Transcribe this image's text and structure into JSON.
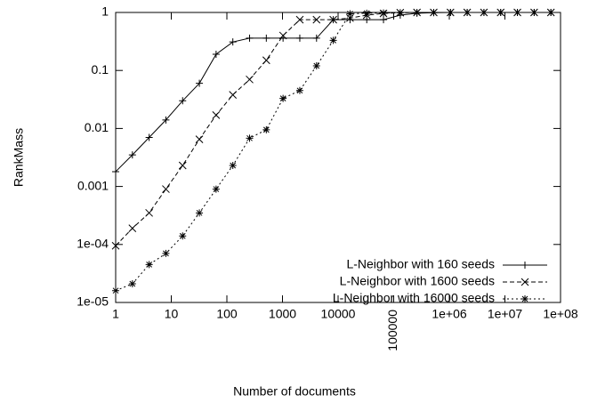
{
  "chart_data": {
    "type": "line",
    "xlabel": "Number of documents",
    "ylabel": "RankMass",
    "xscale": "log",
    "yscale": "log",
    "xlim": [
      1,
      100000000
    ],
    "ylim": [
      1e-05,
      1
    ],
    "xticks": [
      1,
      10,
      100,
      1000,
      10000,
      100000,
      {
        "value": 1000000,
        "label": "1e+06"
      },
      {
        "value": 10000000,
        "label": "1e+07"
      },
      {
        "value": 100000000,
        "label": "1e+08"
      }
    ],
    "yticks": [
      {
        "value": 1e-05,
        "label": "1e-05"
      },
      {
        "value": 0.0001,
        "label": "1e-04"
      },
      0.001,
      0.01,
      0.1,
      1
    ],
    "legend": "bottom-right",
    "x": [
      1,
      2,
      4,
      8,
      16,
      32,
      64,
      128,
      256,
      512,
      1024,
      2048,
      4096,
      8192,
      16384,
      32768,
      65536,
      131072,
      262144,
      524288,
      1048576,
      2097152,
      4194304,
      8388608,
      16777216,
      33554432,
      67108864
    ],
    "series": [
      {
        "name": "L-Neighbor with 160 seeds",
        "color": "#000000",
        "dash": "solid",
        "marker": "plus",
        "values": [
          0.0018,
          0.0035,
          0.007,
          0.014,
          0.03,
          0.06,
          0.19,
          0.31,
          0.36,
          0.36,
          0.36,
          0.36,
          0.36,
          0.75,
          0.75,
          0.75,
          0.75,
          0.9,
          0.97,
          0.99,
          1,
          1,
          1,
          1,
          1,
          1,
          1
        ]
      },
      {
        "name": "L-Neighbor with 1600 seeds",
        "color": "#000000",
        "dash": "dashed",
        "marker": "cross",
        "values": [
          9.5e-05,
          0.00019,
          0.00035,
          0.0009,
          0.0023,
          0.0065,
          0.017,
          0.038,
          0.07,
          0.15,
          0.4,
          0.75,
          0.75,
          0.75,
          0.8,
          0.9,
          0.96,
          0.99,
          1,
          1,
          1,
          1,
          1,
          1,
          1,
          1,
          1
        ]
      },
      {
        "name": "L-Neighbor with 16000 seeds",
        "color": "#000000",
        "dash": "dotted",
        "marker": "star",
        "values": [
          1.6e-05,
          2.1e-05,
          4.5e-05,
          7e-05,
          0.00014,
          0.00035,
          0.0009,
          0.0023,
          0.0068,
          0.0095,
          0.033,
          0.045,
          0.12,
          0.33,
          0.95,
          0.97,
          0.98,
          0.99,
          1,
          1,
          1,
          1,
          1,
          1,
          1,
          1,
          1
        ]
      }
    ]
  }
}
